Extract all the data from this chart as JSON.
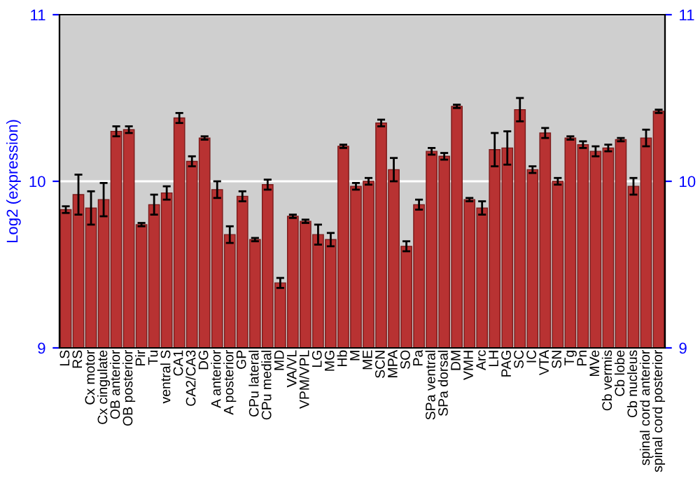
{
  "chart_data": {
    "type": "bar",
    "ylabel": "Log2 (expression)",
    "categories": [
      "LS",
      "RS",
      "Cx motor",
      "Cx cingulate",
      "OB anterior",
      "OB posterior",
      "Pir",
      "Tu",
      "ventral S",
      "CA1",
      "CA2/CA3",
      "DG",
      "A anterior",
      "A posterior",
      "GP",
      "CPu lateral",
      "CPu medial",
      "MD",
      "VA/VL",
      "VPM/VPL",
      "LG",
      "MG",
      "Hb",
      "M",
      "ME",
      "SCN",
      "MPA",
      "SO",
      "Pa",
      "SPa ventral",
      "SPa dorsal",
      "DM",
      "VMH",
      "Arc",
      "LH",
      "PAG",
      "SC",
      "IC",
      "VTA",
      "SN",
      "Tg",
      "Pn",
      "MVe",
      "Cb vermis",
      "Cb lobe",
      "Cb nucleus",
      "spinal cord anterior",
      "spinal cord posterior"
    ],
    "values": [
      9.83,
      9.92,
      9.84,
      9.89,
      10.3,
      10.31,
      9.74,
      9.86,
      9.93,
      10.38,
      10.12,
      10.26,
      9.95,
      9.68,
      9.91,
      9.65,
      9.98,
      9.39,
      9.79,
      9.76,
      9.68,
      9.65,
      10.21,
      9.97,
      10.0,
      10.35,
      10.07,
      9.61,
      9.86,
      10.18,
      10.15,
      10.45,
      9.89,
      9.84,
      10.19,
      10.2,
      10.43,
      10.07,
      10.29,
      10.0,
      10.26,
      10.22,
      10.18,
      10.2,
      10.25,
      9.97,
      10.26,
      10.42
    ],
    "errors": [
      0.02,
      0.12,
      0.1,
      0.1,
      0.03,
      0.02,
      0.01,
      0.06,
      0.04,
      0.03,
      0.03,
      0.01,
      0.05,
      0.05,
      0.03,
      0.01,
      0.03,
      0.03,
      0.01,
      0.01,
      0.06,
      0.04,
      0.01,
      0.02,
      0.02,
      0.02,
      0.07,
      0.03,
      0.03,
      0.02,
      0.02,
      0.01,
      0.01,
      0.04,
      0.1,
      0.1,
      0.07,
      0.02,
      0.03,
      0.02,
      0.01,
      0.02,
      0.03,
      0.02,
      0.01,
      0.05,
      0.05,
      0.01
    ],
    "color": "#b83232",
    "ylim": [
      9,
      11
    ],
    "yticks": [
      9,
      10,
      11
    ],
    "y2lim": [
      9,
      11
    ],
    "y2ticks": [
      9,
      10,
      11
    ],
    "grid": "y"
  }
}
